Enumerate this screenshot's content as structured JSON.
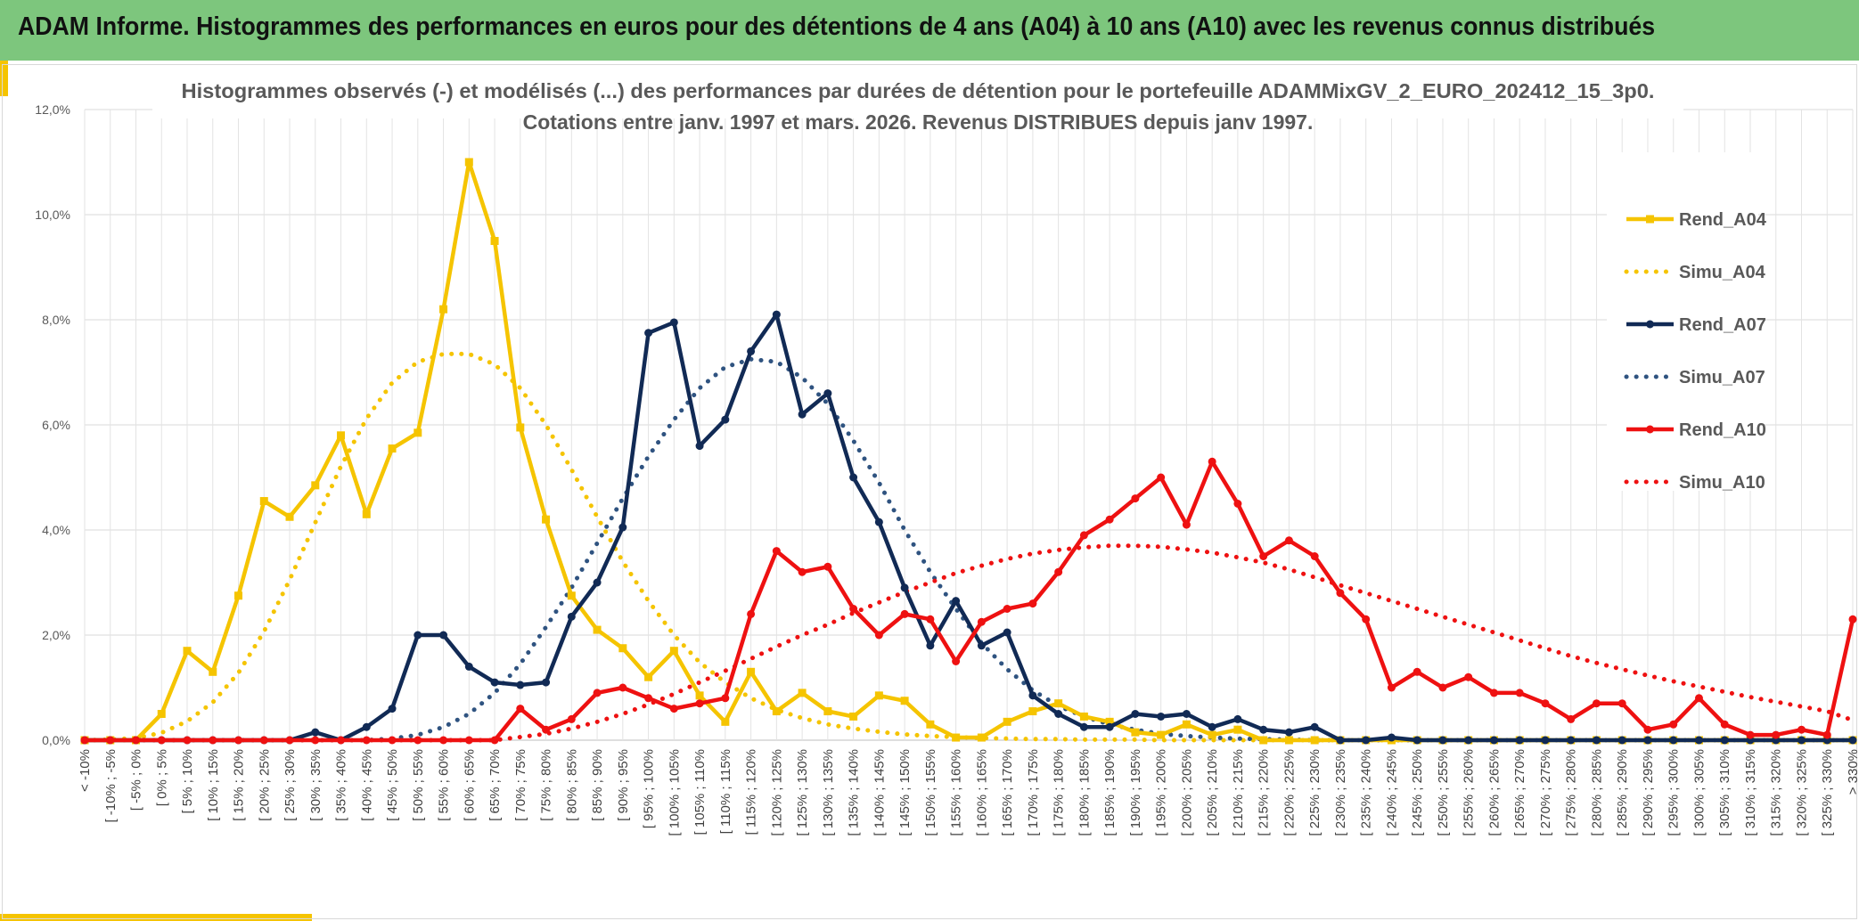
{
  "header": {
    "title": "ADAM Informe. Histogrammes des performances en euros pour des détentions de 4 ans (A04) à 10 ans (A10) avec les revenus connus distribués"
  },
  "colors": {
    "header_bg": "#7dc67d",
    "accent": "#f5c400",
    "A04": "#f5c400",
    "A07": "#112a55",
    "Simu_A07": "#2f5380",
    "A10": "#ee1111"
  },
  "chart_data": {
    "type": "line",
    "title_line1": "Histogrammes observés (-) et modélisés (...) des performances par durées de détention pour le portefeuille ADAMMixGV_2_EURO_202412_15_3p0.",
    "title_line2": "Cotations entre janv. 1997 et mars. 2026. Revenus DISTRIBUES depuis janv 1997.",
    "xlabel": "",
    "ylabel": "",
    "ylim": [
      0,
      12
    ],
    "y_ticks": [
      "0,0%",
      "2,0%",
      "4,0%",
      "6,0%",
      "8,0%",
      "10,0%",
      "12,0%"
    ],
    "grid": true,
    "legend_position": "right",
    "categories": [
      "< -10%",
      "[ -10% ; -5%",
      "[ -5% ; 0%",
      "[ 0% ; 5%",
      "[ 5% ; 10%",
      "[ 10% ; 15%",
      "[ 15% ; 20%",
      "[ 20% ; 25%",
      "[ 25% ; 30%",
      "[ 30% ; 35%",
      "[ 35% ; 40%",
      "[ 40% ; 45%",
      "[ 45% ; 50%",
      "[ 50% ; 55%",
      "[ 55% ; 60%",
      "[ 60% ; 65%",
      "[ 65% ; 70%",
      "[ 70% ; 75%",
      "[ 75% ; 80%",
      "[ 80% ; 85%",
      "[ 85% ; 90%",
      "[ 90% ; 95%",
      "[ 95% ; 100%",
      "[ 100% ; 105%",
      "[ 105% ; 110%",
      "[ 110% ; 115%",
      "[ 115% ; 120%",
      "[ 120% ; 125%",
      "[ 125% ; 130%",
      "[ 130% ; 135%",
      "[ 135% ; 140%",
      "[ 140% ; 145%",
      "[ 145% ; 150%",
      "[ 150% ; 155%",
      "[ 155% ; 160%",
      "[ 160% ; 165%",
      "[ 165% ; 170%",
      "[ 170% ; 175%",
      "[ 175% ; 180%",
      "[ 180% ; 185%",
      "[ 185% ; 190%",
      "[ 190% ; 195%",
      "[ 195% ; 200%",
      "[ 200% ; 205%",
      "[ 205% ; 210%",
      "[ 210% ; 215%",
      "[ 215% ; 220%",
      "[ 220% ; 225%",
      "[ 225% ; 230%",
      "[ 230% ; 235%",
      "[ 235% ; 240%",
      "[ 240% ; 245%",
      "[ 245% ; 250%",
      "[ 250% ; 255%",
      "[ 255% ; 260%",
      "[ 260% ; 265%",
      "[ 265% ; 270%",
      "[ 270% ; 275%",
      "[ 275% ; 280%",
      "[ 280% ; 285%",
      "[ 285% ; 290%",
      "[ 290% ; 295%",
      "[ 295% ; 300%",
      "[ 300% ; 305%",
      "[ 305% ; 310%",
      "[ 310% ; 315%",
      "[ 315% ; 320%",
      "[ 320% ; 325%",
      "[ 325% ; 330%",
      "> 330%"
    ],
    "series": [
      {
        "name": "Rend_A04",
        "style": "solid",
        "marker": "square",
        "color": "#f5c400",
        "values": [
          0,
          0,
          0,
          0.5,
          1.7,
          1.3,
          2.75,
          4.55,
          4.25,
          4.85,
          5.8,
          4.3,
          5.55,
          5.85,
          8.2,
          11.0,
          9.5,
          5.95,
          4.2,
          2.75,
          2.1,
          1.75,
          1.2,
          1.7,
          0.85,
          0.35,
          1.3,
          0.55,
          0.9,
          0.55,
          0.45,
          0.85,
          0.75,
          0.3,
          0.05,
          0.05,
          0.35,
          0.55,
          0.7,
          0.45,
          0.35,
          0.15,
          0.1,
          0.3,
          0.1,
          0.2,
          0,
          0,
          0,
          0,
          0,
          0,
          0,
          0,
          0,
          0,
          0,
          0,
          0,
          0,
          0,
          0,
          0,
          0,
          0,
          0,
          0,
          0,
          0,
          0
        ]
      },
      {
        "name": "Simu_A04",
        "style": "dotted",
        "color": "#f5c400",
        "values": [
          0.0,
          0.01,
          0.04,
          0.14,
          0.36,
          0.72,
          1.28,
          2.07,
          3.05,
          4.14,
          5.21,
          6.12,
          6.8,
          7.2,
          7.35,
          7.35,
          7.15,
          6.7,
          6.0,
          5.15,
          4.25,
          3.4,
          2.65,
          2.0,
          1.48,
          1.1,
          0.8,
          0.58,
          0.42,
          0.3,
          0.22,
          0.16,
          0.11,
          0.08,
          0.06,
          0.04,
          0.03,
          0.02,
          0.02,
          0.01,
          0.01,
          0.01,
          0.0,
          0.0,
          0.0,
          0.0,
          0.0,
          0.0,
          0.0,
          0.0,
          0.0,
          0.0,
          0.0,
          0.0,
          0.0,
          0.0,
          0.0,
          0.0,
          0.0,
          0.0,
          0.0,
          0.0,
          0.0,
          0.0,
          0.0,
          0.0,
          0.0,
          0.0,
          0.0,
          0.0
        ]
      },
      {
        "name": "Rend_A07",
        "style": "solid",
        "marker": "circle",
        "color": "#112a55",
        "values": [
          0,
          0,
          0,
          0,
          0,
          0,
          0,
          0,
          0,
          0.15,
          0,
          0.25,
          0.6,
          2.0,
          2.0,
          1.4,
          1.1,
          1.05,
          1.1,
          2.35,
          3.0,
          4.05,
          7.75,
          7.95,
          5.6,
          6.1,
          7.4,
          8.1,
          6.2,
          6.6,
          5.0,
          4.15,
          2.9,
          1.8,
          2.65,
          1.8,
          2.05,
          0.85,
          0.5,
          0.25,
          0.25,
          0.5,
          0.45,
          0.5,
          0.25,
          0.4,
          0.2,
          0.15,
          0.25,
          0,
          0,
          0.05,
          0,
          0,
          0,
          0,
          0,
          0,
          0,
          0,
          0,
          0,
          0,
          0,
          0,
          0,
          0,
          0,
          0,
          0
        ]
      },
      {
        "name": "Simu_A07",
        "style": "dotted",
        "color": "#2f5380",
        "values": [
          0,
          0,
          0,
          0,
          0,
          0,
          0,
          0,
          0,
          0,
          0,
          0.0,
          0.03,
          0.1,
          0.25,
          0.5,
          0.9,
          1.45,
          2.15,
          2.9,
          3.75,
          4.6,
          5.4,
          6.1,
          6.7,
          7.1,
          7.25,
          7.2,
          6.9,
          6.4,
          5.7,
          4.9,
          4.0,
          3.2,
          2.5,
          1.85,
          1.35,
          0.95,
          0.65,
          0.45,
          0.3,
          0.2,
          0.12,
          0.08,
          0.05,
          0.03,
          0.02,
          0.01,
          0,
          0,
          0,
          0,
          0,
          0,
          0,
          0,
          0,
          0,
          0,
          0,
          0,
          0,
          0,
          0,
          0,
          0,
          0,
          0,
          0,
          0
        ]
      },
      {
        "name": "Rend_A10",
        "style": "solid",
        "marker": "circle",
        "color": "#ee1111",
        "values": [
          0,
          0,
          0,
          0,
          0,
          0,
          0,
          0,
          0,
          0,
          0,
          0,
          0,
          0,
          0,
          0,
          0,
          0.6,
          0.2,
          0.4,
          0.9,
          1.0,
          0.8,
          0.6,
          0.7,
          0.8,
          2.4,
          3.6,
          3.2,
          3.3,
          2.5,
          2.0,
          2.4,
          2.3,
          1.5,
          2.25,
          2.5,
          2.6,
          3.2,
          3.9,
          4.2,
          4.6,
          5.0,
          4.1,
          5.3,
          4.5,
          3.5,
          3.8,
          3.5,
          2.8,
          2.3,
          1.0,
          1.3,
          1.0,
          1.2,
          0.9,
          0.9,
          0.7,
          0.4,
          0.7,
          0.7,
          0.2,
          0.3,
          0.8,
          0.3,
          0.1,
          0.1,
          0.2,
          0.1,
          2.3
        ]
      },
      {
        "name": "Simu_A10",
        "style": "dotted",
        "color": "#ee1111",
        "values": [
          0,
          0,
          0,
          0,
          0,
          0,
          0,
          0,
          0,
          0,
          0,
          0,
          0,
          0,
          0,
          0,
          0,
          0.06,
          0.12,
          0.22,
          0.35,
          0.5,
          0.68,
          0.88,
          1.1,
          1.32,
          1.55,
          1.78,
          2.0,
          2.2,
          2.42,
          2.62,
          2.82,
          3.0,
          3.18,
          3.32,
          3.45,
          3.55,
          3.62,
          3.67,
          3.7,
          3.7,
          3.68,
          3.63,
          3.57,
          3.48,
          3.38,
          3.25,
          3.1,
          2.95,
          2.8,
          2.65,
          2.5,
          2.35,
          2.2,
          2.05,
          1.9,
          1.75,
          1.6,
          1.47,
          1.35,
          1.23,
          1.12,
          1.02,
          0.92,
          0.82,
          0.73,
          0.64,
          0.55,
          0.38
        ]
      }
    ]
  }
}
